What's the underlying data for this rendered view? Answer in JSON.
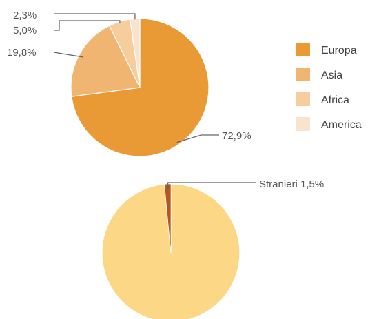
{
  "chart_data": [
    {
      "type": "pie",
      "categories": [
        "Europa",
        "Asia",
        "Africa",
        "America"
      ],
      "values": [
        72.9,
        19.8,
        5.0,
        2.3
      ],
      "value_labels": [
        "72,9%",
        "19,8%",
        "5,0%",
        "2,3%"
      ],
      "colors": [
        "#E99A35",
        "#F0B671",
        "#F6CE9E",
        "#FAE3CC"
      ],
      "legend": "right",
      "start_angle": "12 o'clock, clockwise"
    },
    {
      "type": "pie",
      "categories": [
        "",
        "Stranieri"
      ],
      "values": [
        98.5,
        1.5
      ],
      "annotation": "Stranieri 1,5%",
      "colors": [
        "#FCD886",
        "#B5561E"
      ],
      "start_angle": "12 o'clock, clockwise"
    }
  ]
}
